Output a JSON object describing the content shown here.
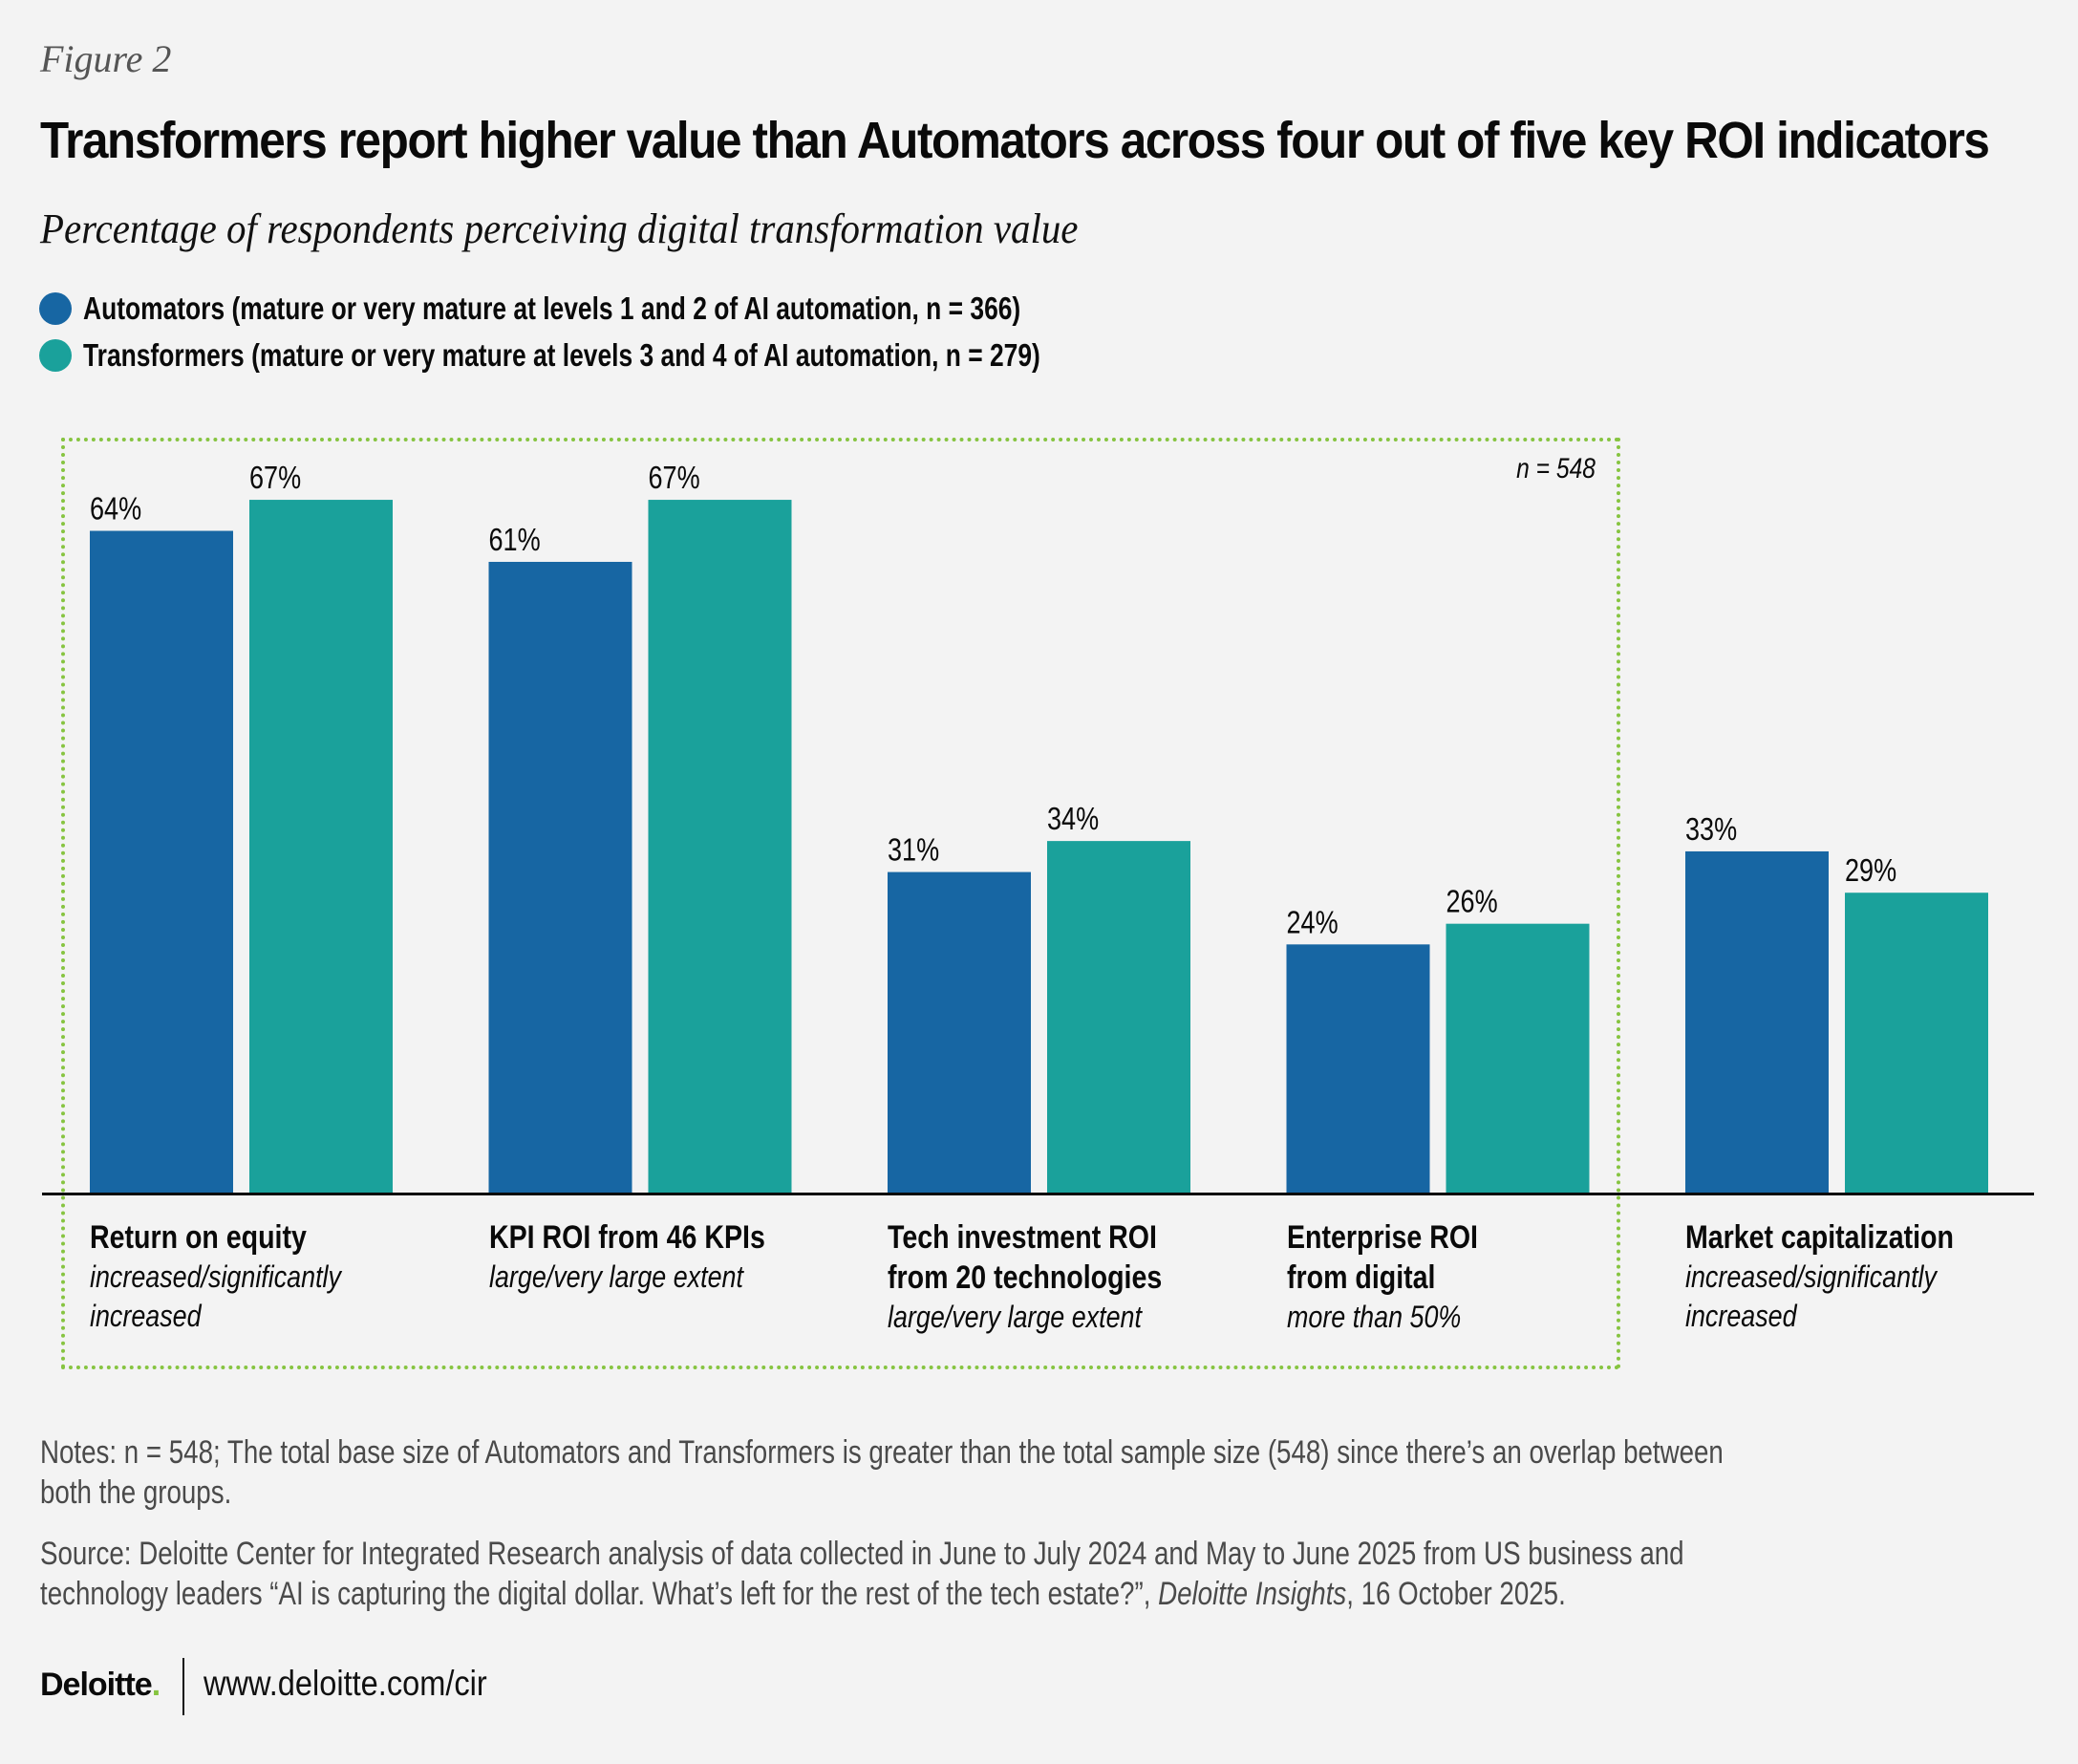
{
  "figure_label": "Figure 2",
  "title": "Transformers report higher value than Automators across four out of five key ROI indicators",
  "subtitle": "Percentage of respondents perceiving digital transformation value",
  "legend": [
    {
      "label": "Automators (mature or very mature at levels 1 and 2 of AI automation, n = 366)",
      "color": "#1766a3"
    },
    {
      "label": "Transformers (mature or very mature at levels 3 and 4 of AI automation, n = 279)",
      "color": "#1aa19b"
    }
  ],
  "sample_note": "n = 548",
  "highlight_color": "#86c440",
  "chart_data": {
    "type": "bar",
    "title": "Transformers report higher value than Automators across four out of five key ROI indicators",
    "subtitle": "Percentage of respondents perceiving digital transformation value",
    "xlabel": "",
    "ylabel": "",
    "ylim": [
      0,
      100
    ],
    "grid": false,
    "legend_position": "top-left",
    "value_suffix": "%",
    "categories": [
      {
        "title": [
          "Return on equity"
        ],
        "subtitle": [
          "increased/significantly",
          "increased"
        ]
      },
      {
        "title": [
          "KPI ROI from 46 KPIs"
        ],
        "subtitle": [
          "large/very large extent"
        ]
      },
      {
        "title": [
          "Tech investment ROI",
          "from 20 technologies"
        ],
        "subtitle": [
          "large/very large extent"
        ]
      },
      {
        "title": [
          "Enterprise ROI",
          "from digital"
        ],
        "subtitle": [
          "more than 50%"
        ]
      },
      {
        "title": [
          "Market capitalization"
        ],
        "subtitle": [
          "increased/significantly",
          "increased"
        ]
      }
    ],
    "series": [
      {
        "name": "Automators",
        "color": "#1766a3",
        "values": [
          64,
          61,
          31,
          24,
          33
        ]
      },
      {
        "name": "Transformers",
        "color": "#1aa19b",
        "values": [
          67,
          67,
          34,
          26,
          29
        ]
      }
    ],
    "annotations": [
      "n = 548 (applies to first four indicators, highlighted by dotted box)"
    ]
  },
  "notes": "Notes: n = 548; The total base size of Automators and Transformers is greater than the total sample size (548) since there’s an overlap between both the groups.",
  "source": {
    "lines": [
      "Source: Deloitte Center for Integrated Research analysis of data collected in June to July 2024 and May to June 2025 from US business and",
      "technology leaders “AI is capturing the digital dollar. What’s left for the rest of the tech estate?”, "
    ],
    "publication": "Deloitte Insights",
    "date": ", 16 October 2025."
  },
  "notes_lines": [
    "Notes: n = 548; The total base size of Automators and Transformers is greater than the total sample size (548) since there’s an overlap between",
    "both the groups."
  ],
  "footer": {
    "logo": "Deloitte",
    "logo_dot": ".",
    "url": "www.deloitte.com/cir"
  }
}
